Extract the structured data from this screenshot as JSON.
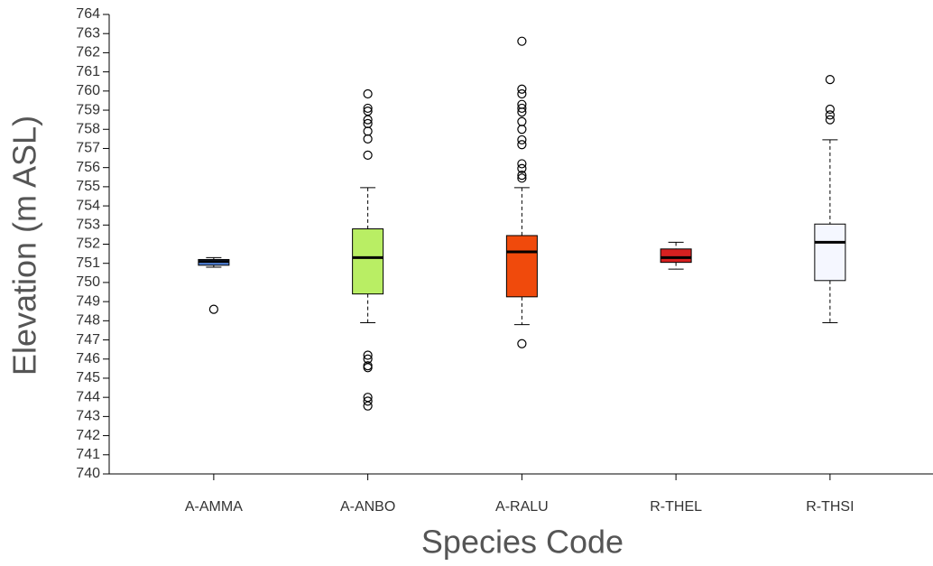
{
  "chart_data": {
    "type": "box",
    "x_label": "Species Code",
    "y_label": "Elevation (m ASL)",
    "categories": [
      "A-AMMA",
      "A-ANBO",
      "A-RALU",
      "R-THEL",
      "R-THSI"
    ],
    "ylim": [
      740,
      764
    ],
    "yticks": [
      740,
      741,
      742,
      743,
      744,
      745,
      746,
      747,
      748,
      749,
      750,
      751,
      752,
      753,
      754,
      755,
      756,
      757,
      758,
      759,
      760,
      761,
      762,
      763,
      764
    ],
    "boxes": [
      {
        "color": "#4f81d6",
        "min": 750.8,
        "q1": 750.9,
        "median": 751.1,
        "q3": 751.2,
        "max": 751.3,
        "outliers": [
          748.6
        ]
      },
      {
        "color": "#b9ee64",
        "min": 747.9,
        "q1": 749.4,
        "median": 751.3,
        "q3": 752.8,
        "max": 754.95,
        "outliers": [
          759.85,
          759.1,
          758.95,
          758.5,
          758.3,
          757.9,
          757.5,
          756.65,
          746.2,
          746.0,
          745.65,
          745.55,
          744.0,
          743.8,
          743.55
        ]
      },
      {
        "color": "#f04a0c",
        "min": 747.8,
        "q1": 749.25,
        "median": 751.6,
        "q3": 752.45,
        "max": 754.95,
        "outliers": [
          762.6,
          760.1,
          759.85,
          759.3,
          759.1,
          758.9,
          758.4,
          758.0,
          757.45,
          757.2,
          756.2,
          755.95,
          755.6,
          755.45,
          746.8
        ]
      },
      {
        "color": "#d62020",
        "min": 750.7,
        "q1": 751.05,
        "median": 751.3,
        "q3": 751.75,
        "max": 752.1,
        "outliers": []
      },
      {
        "color": "#f5f7ff",
        "min": 747.9,
        "q1": 750.1,
        "median": 752.1,
        "q3": 753.05,
        "max": 757.45,
        "outliers": [
          760.6,
          759.05,
          758.75,
          758.5
        ]
      }
    ]
  }
}
